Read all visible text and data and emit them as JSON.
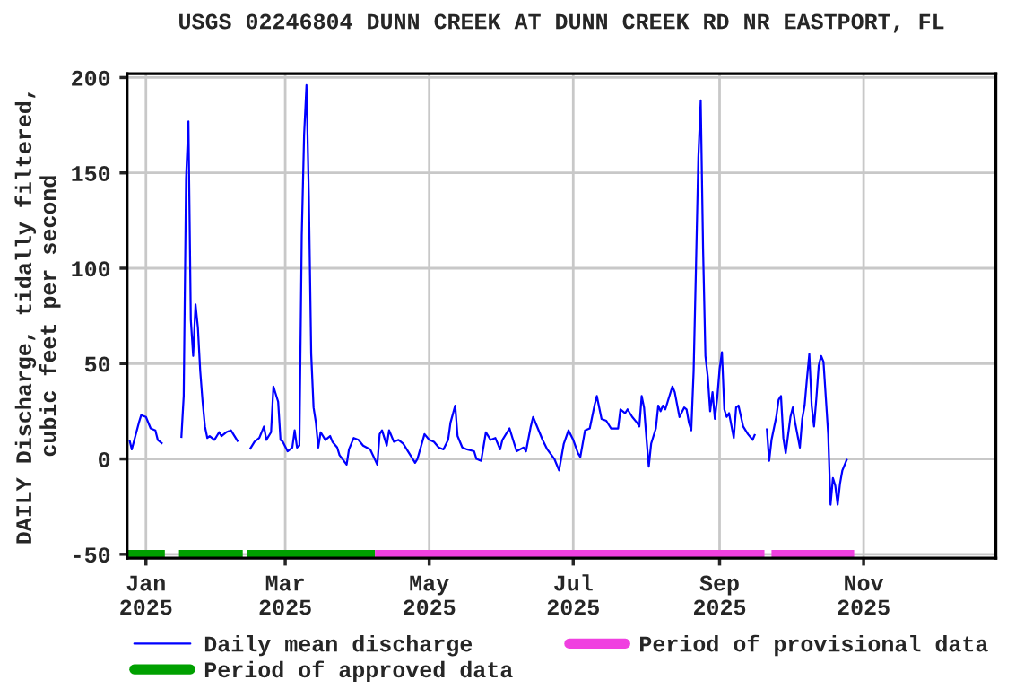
{
  "chart_data": {
    "type": "line",
    "title": "USGS 02246804 DUNN CREEK AT DUNN CREEK RD NR EASTPORT, FL",
    "ylabel": "DAILY Discharge, tidally filtered,\ncubic feet per second",
    "xlim": [
      "2024-12-24",
      "2025-12-27"
    ],
    "ylim": [
      -52,
      202
    ],
    "yticks": [
      -50,
      0,
      50,
      100,
      150,
      200
    ],
    "xticks": [
      {
        "value": "2025-01-01",
        "label": "Jan\n2025"
      },
      {
        "value": "2025-03-01",
        "label": "Mar\n2025"
      },
      {
        "value": "2025-05-01",
        "label": "May\n2025"
      },
      {
        "value": "2025-07-01",
        "label": "Jul\n2025"
      },
      {
        "value": "2025-09-01",
        "label": "Sep\n2025"
      },
      {
        "value": "2025-11-01",
        "label": "Nov\n2025"
      }
    ],
    "grid": true,
    "legend": "bottom",
    "series": [
      {
        "name": "Daily mean discharge",
        "color": "#0000ff",
        "x": [
          "2024-12-25",
          "2024-12-26",
          "2024-12-29",
          "2024-12-30",
          "2025-01-01",
          "2025-01-03",
          "2025-01-05",
          "2025-01-06",
          "2025-01-08",
          "2025-01-11",
          "2025-01-16",
          "2025-01-17",
          "2025-01-18",
          "2025-01-19",
          "2025-01-20",
          "2025-01-21",
          "2025-01-22",
          "2025-01-23",
          "2025-01-24",
          "2025-01-25",
          "2025-01-26",
          "2025-01-27",
          "2025-01-28",
          "2025-01-30",
          "2025-02-01",
          "2025-02-02",
          "2025-02-04",
          "2025-02-06",
          "2025-02-07",
          "2025-02-09",
          "2025-02-11",
          "2025-02-14",
          "2025-02-16",
          "2025-02-18",
          "2025-02-20",
          "2025-02-21",
          "2025-02-23",
          "2025-02-24",
          "2025-02-26",
          "2025-02-27",
          "2025-02-28",
          "2025-03-02",
          "2025-03-04",
          "2025-03-05",
          "2025-03-06",
          "2025-03-07",
          "2025-03-08",
          "2025-03-09",
          "2025-03-10",
          "2025-03-11",
          "2025-03-12",
          "2025-03-13",
          "2025-03-14",
          "2025-03-15",
          "2025-03-16",
          "2025-03-18",
          "2025-03-20",
          "2025-03-21",
          "2025-03-23",
          "2025-03-24",
          "2025-03-27",
          "2025-03-28",
          "2025-03-30",
          "2025-04-01",
          "2025-04-03",
          "2025-04-06",
          "2025-04-09",
          "2025-04-10",
          "2025-04-11",
          "2025-04-13",
          "2025-04-14",
          "2025-04-16",
          "2025-04-18",
          "2025-04-20",
          "2025-04-22",
          "2025-04-25",
          "2025-04-26",
          "2025-04-29",
          "2025-05-01",
          "2025-05-03",
          "2025-05-05",
          "2025-05-07",
          "2025-05-09",
          "2025-05-10",
          "2025-05-12",
          "2025-05-13",
          "2025-05-15",
          "2025-05-17",
          "2025-05-20",
          "2025-05-21",
          "2025-05-23",
          "2025-05-25",
          "2025-05-27",
          "2025-05-29",
          "2025-05-31",
          "2025-06-01",
          "2025-06-04",
          "2025-06-06",
          "2025-06-07",
          "2025-06-10",
          "2025-06-11",
          "2025-06-13",
          "2025-06-14",
          "2025-06-16",
          "2025-06-18",
          "2025-06-20",
          "2025-06-23",
          "2025-06-25",
          "2025-06-27",
          "2025-06-29",
          "2025-07-01",
          "2025-07-03",
          "2025-07-04",
          "2025-07-06",
          "2025-07-08",
          "2025-07-10",
          "2025-07-11",
          "2025-07-13",
          "2025-07-15",
          "2025-07-17",
          "2025-07-20",
          "2025-07-21",
          "2025-07-23",
          "2025-07-24",
          "2025-07-26",
          "2025-07-28",
          "2025-07-29",
          "2025-07-30",
          "2025-07-31",
          "2025-08-01",
          "2025-08-02",
          "2025-08-03",
          "2025-08-05",
          "2025-08-06",
          "2025-08-07",
          "2025-08-08",
          "2025-08-09",
          "2025-08-10",
          "2025-08-12",
          "2025-08-13",
          "2025-08-15",
          "2025-08-17",
          "2025-08-18",
          "2025-08-19",
          "2025-08-20",
          "2025-08-21",
          "2025-08-22",
          "2025-08-23",
          "2025-08-24",
          "2025-08-25",
          "2025-08-26",
          "2025-08-27",
          "2025-08-28",
          "2025-08-29",
          "2025-08-30",
          "2025-08-31",
          "2025-09-01",
          "2025-09-02",
          "2025-09-03",
          "2025-09-04",
          "2025-09-05",
          "2025-09-07",
          "2025-09-08",
          "2025-09-09",
          "2025-09-11",
          "2025-09-12",
          "2025-09-13",
          "2025-09-15",
          "2025-09-16",
          "2025-09-18",
          "2025-09-21",
          "2025-09-22",
          "2025-09-23",
          "2025-09-25",
          "2025-09-26",
          "2025-09-27",
          "2025-09-28",
          "2025-09-29",
          "2025-10-01",
          "2025-10-02",
          "2025-10-03",
          "2025-10-05",
          "2025-10-06",
          "2025-10-07",
          "2025-10-08",
          "2025-10-09",
          "2025-10-10",
          "2025-10-11",
          "2025-10-12",
          "2025-10-13",
          "2025-10-14",
          "2025-10-15",
          "2025-10-16",
          "2025-10-17",
          "2025-10-18",
          "2025-10-19",
          "2025-10-20",
          "2025-10-21",
          "2025-10-22",
          "2025-10-23",
          "2025-10-25"
        ],
        "values": [
          10,
          5,
          19,
          23,
          22,
          16,
          15,
          10,
          8,
          null,
          11,
          33,
          147,
          177,
          73,
          54,
          81,
          69,
          46,
          30,
          17,
          11,
          12,
          10,
          14,
          12,
          14,
          15,
          13,
          9,
          null,
          5,
          9,
          11,
          17,
          10,
          14,
          38,
          30,
          10,
          9,
          4,
          6,
          15,
          6,
          7,
          117,
          170,
          196,
          138,
          55,
          27,
          19,
          6,
          14,
          10,
          12,
          9,
          6,
          2,
          -3,
          5,
          11,
          10,
          7,
          5,
          -3,
          13,
          15,
          7,
          15,
          9,
          10,
          8,
          4,
          -2,
          0,
          13,
          10,
          9,
          6,
          5,
          10,
          19,
          28,
          12,
          6,
          5,
          4,
          0,
          -1,
          14,
          10,
          11,
          5,
          10,
          16,
          8,
          4,
          6,
          4,
          17,
          22,
          16,
          10,
          5,
          0,
          -6,
          8,
          15,
          10,
          3,
          1,
          15,
          16,
          28,
          33,
          21,
          20,
          16,
          16,
          26,
          24,
          26,
          22,
          19,
          17,
          33,
          27,
          11,
          -4,
          8,
          16,
          28,
          25,
          28,
          26,
          30,
          38,
          35,
          22,
          27,
          26,
          19,
          15,
          46,
          101,
          158,
          188,
          110,
          54,
          43,
          25,
          35,
          21,
          32,
          47,
          56,
          26,
          22,
          24,
          11,
          27,
          28,
          17,
          15,
          13,
          10,
          13,
          null,
          16,
          -1,
          10,
          22,
          31,
          33,
          11,
          3,
          22,
          27,
          19,
          6,
          21,
          28,
          42,
          55,
          28,
          17,
          32,
          49,
          54,
          51,
          32,
          13,
          -24,
          -10,
          -14,
          -24,
          -13,
          -6,
          0
        ]
      },
      {
        "name": "Period of approved data",
        "color": "#00a000",
        "x": [
          "2024-12-24",
          "2025-01-09",
          "2025-01-12",
          "2025-01-15",
          "2025-02-11",
          "2025-02-12",
          "2025-02-13",
          "2025-04-08"
        ],
        "values": [
          -50,
          -50,
          null,
          -50,
          -50,
          null,
          -50,
          -50
        ]
      },
      {
        "name": "Period of provisional data",
        "color": "#f040e0",
        "x": [
          "2025-04-08",
          "2025-09-20",
          "2025-09-21",
          "2025-09-23",
          "2025-10-28"
        ],
        "values": [
          -50,
          -50,
          null,
          -50,
          -50
        ]
      }
    ]
  }
}
